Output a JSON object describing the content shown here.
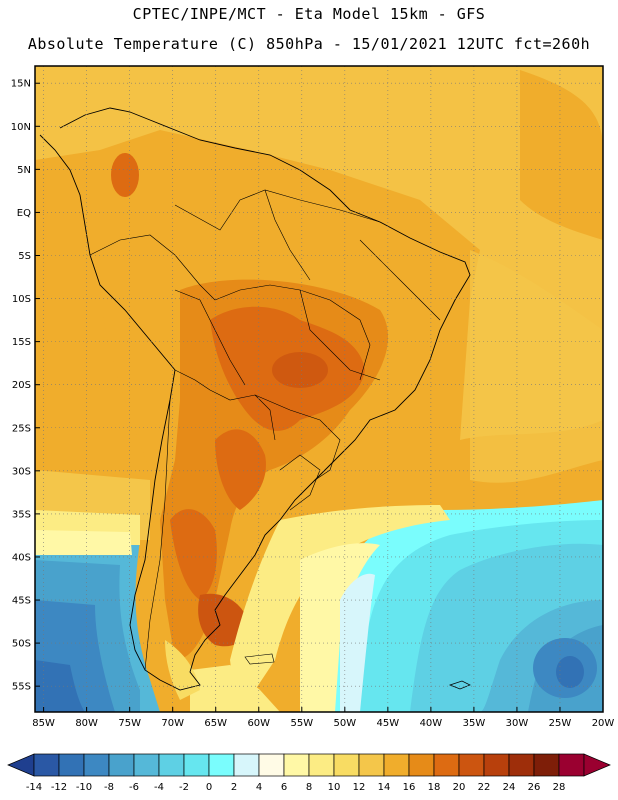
{
  "header": {
    "line1": "CPTEC/INPE/MCT -  Eta Model 15km - GFS",
    "line2": "Absolute Temperature (C) 850hPa - 15/01/2021 12UTC fct=260h"
  },
  "map": {
    "lat_labels": [
      "15N",
      "10N",
      "5N",
      "EQ",
      "5S",
      "10S",
      "15S",
      "20S",
      "25S",
      "30S",
      "35S",
      "40S",
      "45S",
      "50S",
      "55S"
    ],
    "lat_values": [
      15,
      10,
      5,
      0,
      -5,
      -10,
      -15,
      -20,
      -25,
      -30,
      -35,
      -40,
      -45,
      -50,
      -55
    ],
    "lon_labels": [
      "85W",
      "80W",
      "75W",
      "70W",
      "65W",
      "60W",
      "55W",
      "50W",
      "45W",
      "40W",
      "35W",
      "30W",
      "25W",
      "20W"
    ],
    "lon_values": [
      -85,
      -80,
      -75,
      -70,
      -65,
      -60,
      -55,
      -50,
      -45,
      -40,
      -35,
      -30,
      -25,
      -20
    ],
    "lat_range": [
      -58,
      17
    ],
    "lon_range": [
      -86,
      -20
    ]
  },
  "colorbar": {
    "labels": [
      "-14",
      "-12",
      "-10",
      "-8",
      "-6",
      "-4",
      "-2",
      "0",
      "2",
      "4",
      "6",
      "8",
      "10",
      "12",
      "14",
      "16",
      "18",
      "20",
      "22",
      "24",
      "26",
      "28"
    ],
    "colors": [
      "#1f3f8f",
      "#2a58a5",
      "#3272b5",
      "#3d88c2",
      "#49a2cc",
      "#55b8d8",
      "#5ed0e4",
      "#66e6ef",
      "#7afdfd",
      "#d7f6fb",
      "#fffbe6",
      "#fff8a6",
      "#fcec84",
      "#f8dc63",
      "#f4c64a",
      "#f0ad2c",
      "#e68b18",
      "#dd6b12",
      "#cc5510",
      "#b8400c",
      "#9e2e0a",
      "#7e1e08",
      "#9a0030"
    ]
  }
}
